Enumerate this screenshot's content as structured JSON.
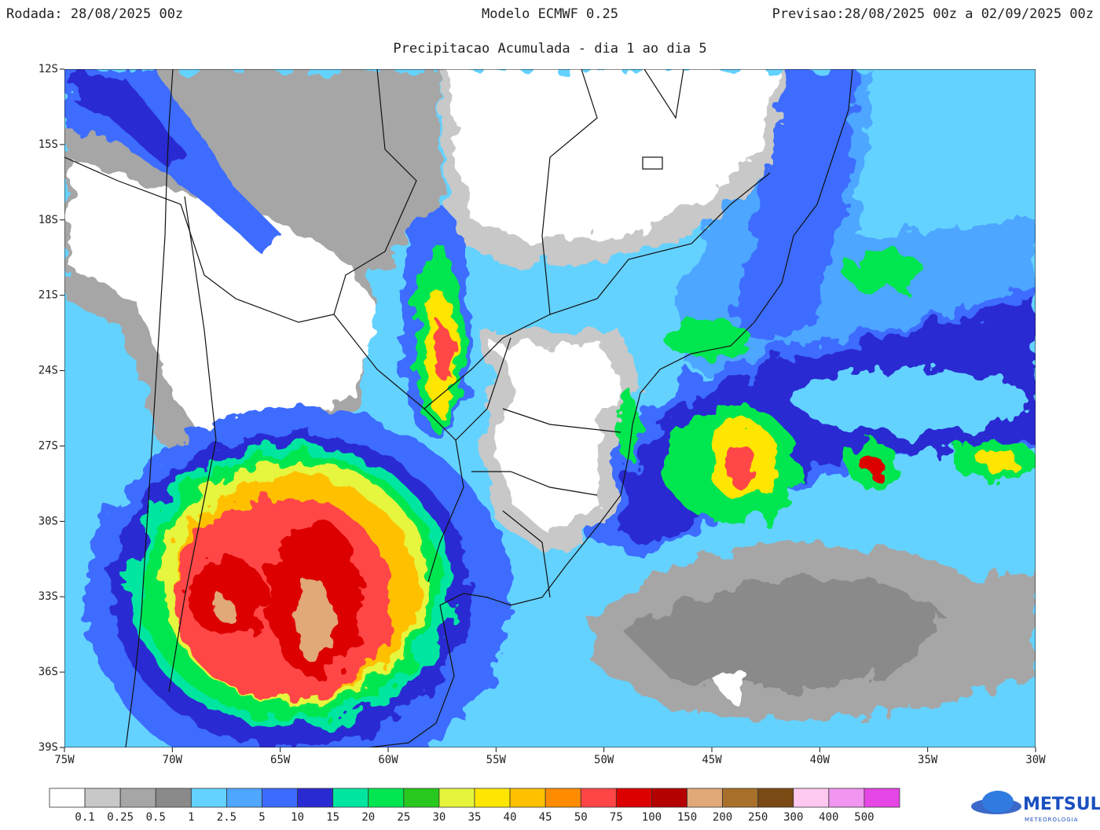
{
  "header": {
    "run": "Rodada: 28/08/2025 00z",
    "model": "Modelo ECMWF 0.25",
    "forecast": "Previsao:28/08/2025 00z a 02/09/2025 00z"
  },
  "title": "Precipitacao Acumulada - dia 1 ao dia 5",
  "map": {
    "lat_ticks": [
      "12S",
      "15S",
      "18S",
      "21S",
      "24S",
      "27S",
      "30S",
      "33S",
      "36S",
      "39S"
    ],
    "lon_ticks": [
      "75W",
      "70W",
      "65W",
      "60W",
      "55W",
      "50W",
      "45W",
      "40W",
      "35W",
      "30W"
    ]
  },
  "legend": {
    "levels": [
      0.1,
      0.25,
      0.5,
      1,
      2.5,
      5,
      10,
      15,
      20,
      25,
      30,
      35,
      40,
      45,
      50,
      75,
      100,
      150,
      200,
      250,
      300,
      400,
      500
    ],
    "colors": [
      "#ffffff",
      "#c8c8c8",
      "#a6a6a6",
      "#8a8a8a",
      "#64d2ff",
      "#4ea6ff",
      "#3c6cff",
      "#2a2ad2",
      "#00e6a0",
      "#00e650",
      "#28c81e",
      "#e6f53c",
      "#ffe600",
      "#ffc000",
      "#ff8c00",
      "#ff4646",
      "#dc0000",
      "#b40000",
      "#e1a878",
      "#a8702a",
      "#7a4a14",
      "#ffc8f0",
      "#f096f0",
      "#e646e6",
      "#8c008c"
    ]
  },
  "logo": {
    "name": "METSUL",
    "subtitle": "METEOROLOGIA"
  }
}
